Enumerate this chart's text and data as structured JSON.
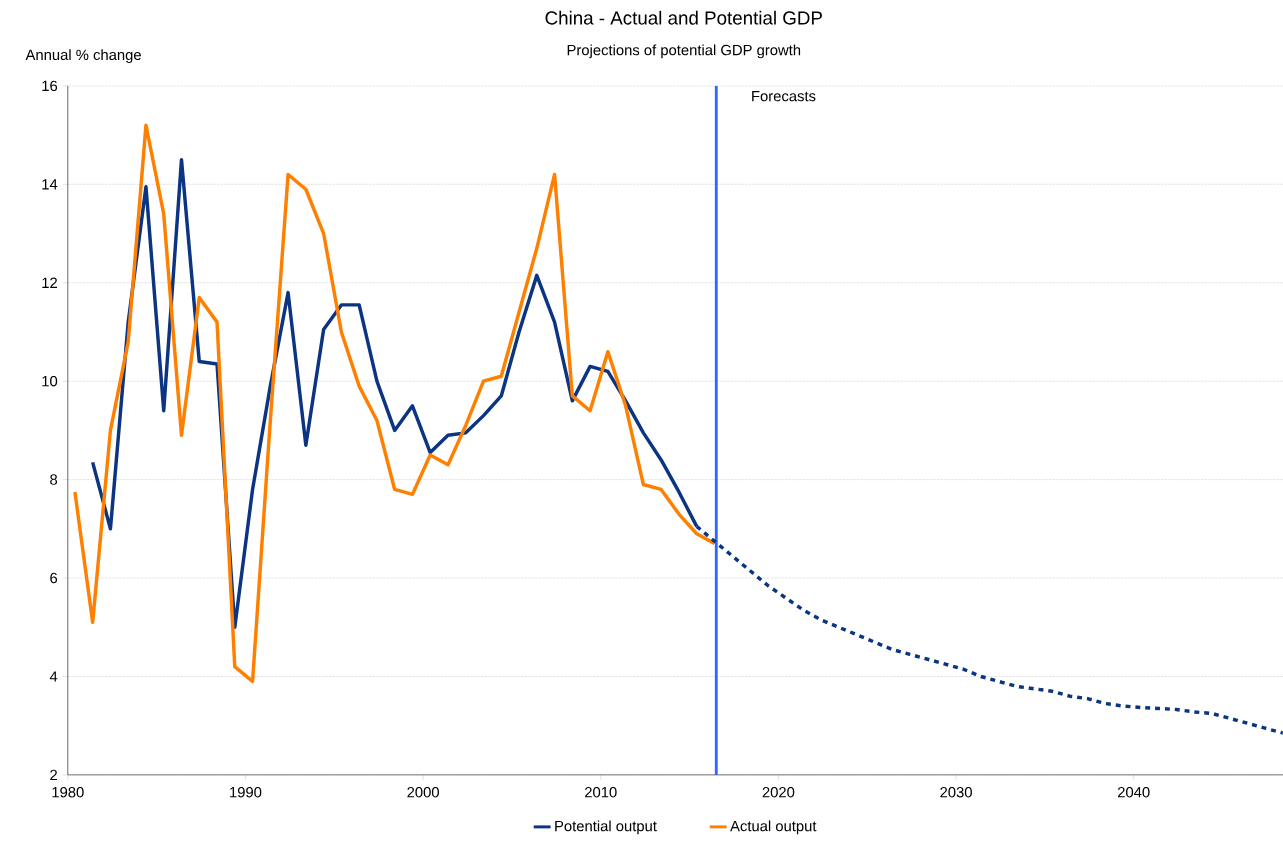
{
  "chart_data": {
    "type": "line",
    "title": "China - Actual and Potential GDP",
    "subtitle": "Projections of potential GDP growth",
    "ylabel": "Annual % change",
    "xlim": [
      1980,
      2048.4
    ],
    "xticks": [
      1980,
      1990,
      2000,
      2010,
      2020,
      2030,
      2040
    ],
    "ylim": [
      2,
      16
    ],
    "yticks": [
      2,
      4,
      6,
      8,
      10,
      12,
      14,
      16
    ],
    "grid": "y",
    "legend": "bottom",
    "marker": "none",
    "ref_lines": [
      {
        "axis": "x",
        "value": 2016.5,
        "label": "Forecasts",
        "color": "#3366ff"
      }
    ],
    "series": [
      {
        "name": "Potential output",
        "color": "#0b3482",
        "line_style": "solid",
        "x": [
          1981.4,
          1982.4,
          1983.4,
          1984.4,
          1985.4,
          1986.4,
          1987.4,
          1988.4,
          1989.4,
          1990.4,
          1991.4,
          1992.4,
          1993.4,
          1994.4,
          1995.4,
          1996.4,
          1997.4,
          1998.4,
          1999.4,
          2000.4,
          2001.4,
          2002.4,
          2003.4,
          2004.4,
          2005.4,
          2006.4,
          2007.4,
          2008.4,
          2009.4,
          2010.4,
          2011.4,
          2012.4,
          2013.4,
          2014.4,
          2015.4
        ],
        "values": [
          8.35,
          7.0,
          11.2,
          13.95,
          9.4,
          14.5,
          10.4,
          10.35,
          5.0,
          7.8,
          9.9,
          11.8,
          8.7,
          11.05,
          11.55,
          11.55,
          10.0,
          9.0,
          9.5,
          8.55,
          8.9,
          8.95,
          9.3,
          9.7,
          11.0,
          12.15,
          11.2,
          9.6,
          10.3,
          10.2,
          9.6,
          8.95,
          8.4,
          7.75,
          7.05
        ]
      },
      {
        "name": "Actual output",
        "color": "#ff8000",
        "line_style": "solid",
        "x": [
          1980.4,
          1981.4,
          1982.4,
          1983.4,
          1984.4,
          1985.4,
          1986.4,
          1987.4,
          1988.4,
          1989.4,
          1990.4,
          1991.4,
          1992.4,
          1993.4,
          1994.4,
          1995.4,
          1996.4,
          1997.4,
          1998.4,
          1999.4,
          2000.4,
          2001.4,
          2002.4,
          2003.4,
          2004.4,
          2005.4,
          2006.4,
          2007.4,
          2008.4,
          2009.4,
          2010.4,
          2011.4,
          2012.4,
          2013.4,
          2014.4,
          2015.4,
          2016.4
        ],
        "values": [
          7.75,
          5.1,
          9.0,
          10.8,
          15.2,
          13.4,
          8.9,
          11.7,
          11.2,
          4.2,
          3.9,
          9.2,
          14.2,
          13.9,
          13.0,
          11.0,
          9.9,
          9.2,
          7.8,
          7.7,
          8.5,
          8.3,
          9.1,
          10.0,
          10.1,
          11.4,
          12.7,
          14.2,
          9.7,
          9.4,
          10.6,
          9.5,
          7.9,
          7.8,
          7.3,
          6.9,
          6.7
        ]
      },
      {
        "color": "#0b3482",
        "line_style": "dotted",
        "x": [
          2015.4,
          2016.4,
          2017.4,
          2018.4,
          2019.4,
          2020.4,
          2021.4,
          2022.4,
          2023.4,
          2024.4,
          2025.4,
          2026.4,
          2027.4,
          2028.4,
          2029.4,
          2030.4,
          2031.4,
          2032.4,
          2033.4,
          2034.4,
          2035.4,
          2036.4,
          2037.4,
          2038.4,
          2039.4,
          2040.4,
          2041.4,
          2042.4,
          2043.4,
          2044.4,
          2045.4,
          2046.4,
          2047.4,
          2048.4
        ],
        "values": [
          7.05,
          6.75,
          6.45,
          6.15,
          5.85,
          5.6,
          5.35,
          5.15,
          5.0,
          4.85,
          4.7,
          4.55,
          4.45,
          4.35,
          4.25,
          4.15,
          4.0,
          3.9,
          3.8,
          3.75,
          3.7,
          3.6,
          3.55,
          3.45,
          3.4,
          3.37,
          3.35,
          3.33,
          3.28,
          3.25,
          3.15,
          3.05,
          2.95,
          2.85
        ]
      }
    ]
  }
}
